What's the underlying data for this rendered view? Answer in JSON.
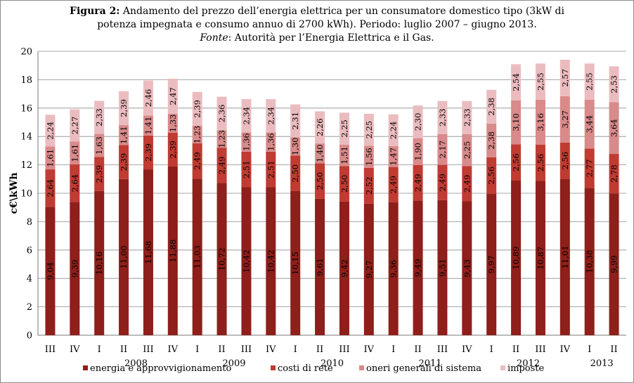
{
  "title": {
    "bold": "Figura 2:",
    "line1": " Andamento del prezzo dell’energia elettrica per un consumatore domestico tipo (3kW di",
    "line2": "potenza impegnata e consumo annuo di 2700 kWh).  Periodo: luglio 2007 – giugno 2013.",
    "source_italic": "Fonte",
    "source_rest": ": Autorità per l’Energia Elettrica e il Gas."
  },
  "colors": {
    "energia": "#8e1f1a",
    "rete": "#c03b32",
    "oneri": "#d98a8a",
    "imposte": "#ebbcbf"
  },
  "chart_data": {
    "type": "bar",
    "stacked": true,
    "ylabel": "c€\\kWh",
    "ylim": [
      0,
      20
    ],
    "yticks": [
      0,
      2,
      4,
      6,
      8,
      10,
      12,
      14,
      16,
      18,
      20
    ],
    "categories": [
      "III",
      "IV",
      "I",
      "II",
      "III",
      "IV",
      "I",
      "II",
      "III",
      "IV",
      "I",
      "II",
      "III",
      "IV",
      "I",
      "II",
      "III",
      "IV",
      "I",
      "II",
      "III",
      "IV",
      "I",
      "II"
    ],
    "years": [
      {
        "label": "2008",
        "start": 2,
        "end": 5
      },
      {
        "label": "2009",
        "start": 6,
        "end": 9
      },
      {
        "label": "2010",
        "start": 10,
        "end": 13
      },
      {
        "label": "2011",
        "start": 14,
        "end": 17
      },
      {
        "label": "2012",
        "start": 18,
        "end": 21
      },
      {
        "label": "2013",
        "start": 22,
        "end": 23
      }
    ],
    "series": [
      {
        "name": "energia e approvvigionamento",
        "color_key": "energia",
        "values": [
          9.04,
          9.39,
          10.16,
          11.0,
          11.68,
          11.88,
          11.03,
          10.72,
          10.42,
          10.42,
          10.15,
          9.61,
          9.42,
          9.27,
          9.36,
          9.49,
          9.51,
          9.43,
          9.97,
          10.89,
          10.87,
          11.01,
          10.38,
          9.99
        ],
        "labels": [
          "9,04",
          "9,39",
          "10,16",
          "11,00",
          "11,68",
          "11,88",
          "11,03",
          "10,72",
          "10,42",
          "10,42",
          "10,15",
          "9,61",
          "9,42",
          "9,27",
          "9,36",
          "9,49",
          "9,51",
          "9,43",
          "9,97",
          "10,89",
          "10,87",
          "11,01",
          "10,38",
          "9,99"
        ]
      },
      {
        "name": "costi di rete",
        "color_key": "rete",
        "values": [
          2.64,
          2.64,
          2.39,
          2.39,
          2.39,
          2.39,
          2.49,
          2.49,
          2.51,
          2.51,
          2.5,
          2.5,
          2.5,
          2.52,
          2.49,
          2.49,
          2.49,
          2.49,
          2.56,
          2.56,
          2.56,
          2.56,
          2.77,
          2.78
        ],
        "labels": [
          "2,64",
          "2,64",
          "2,39",
          "2,39",
          "2,39",
          "2,39",
          "2,49",
          "2,49",
          "2,51",
          "2,51",
          "2,50",
          "2,50",
          "2,50",
          "2,52",
          "2,49",
          "2,49",
          "2,49",
          "2,49",
          "2,56",
          "2,56",
          "2,56",
          "2,56",
          "2,77",
          "2,78"
        ]
      },
      {
        "name": "oneri generali di sistema",
        "color_key": "oneri",
        "values": [
          1.61,
          1.61,
          1.63,
          1.41,
          1.41,
          1.33,
          1.23,
          1.23,
          1.36,
          1.36,
          1.3,
          1.4,
          1.51,
          1.56,
          1.47,
          1.9,
          2.17,
          2.25,
          2.38,
          3.1,
          3.16,
          3.27,
          3.44,
          3.64
        ],
        "labels": [
          "1,61",
          "1,61",
          "1,63",
          "1,41",
          "1,41",
          "1,33",
          "1,23",
          "1,23",
          "1,36",
          "1,36",
          "1,30",
          "1,40",
          "1,51",
          "1,56",
          "1,47",
          "1,90",
          "2,17",
          "2,25",
          "2,38",
          "3,10",
          "3,16",
          "3,27",
          "3,44",
          "3,64"
        ]
      },
      {
        "name": "imposte",
        "color_key": "imposte",
        "values": [
          2.24,
          2.27,
          2.33,
          2.39,
          2.46,
          2.47,
          2.39,
          2.36,
          2.34,
          2.34,
          2.31,
          2.26,
          2.25,
          2.25,
          2.24,
          2.3,
          2.33,
          2.33,
          2.38,
          2.54,
          2.55,
          2.57,
          2.55,
          2.53
        ],
        "labels": [
          "2,24",
          "2,27",
          "2,33",
          "2,39",
          "2,46",
          "2,47",
          "2,39",
          "2,36",
          "2,34",
          "2,34",
          "2,31",
          "2,26",
          "2,25",
          "2,25",
          "2,24",
          "2,30",
          "2,33",
          "2,33",
          "2,38",
          "2,54",
          "2,55",
          "2,57",
          "2,55",
          "2,53"
        ]
      }
    ],
    "legend_position": "bottom"
  }
}
